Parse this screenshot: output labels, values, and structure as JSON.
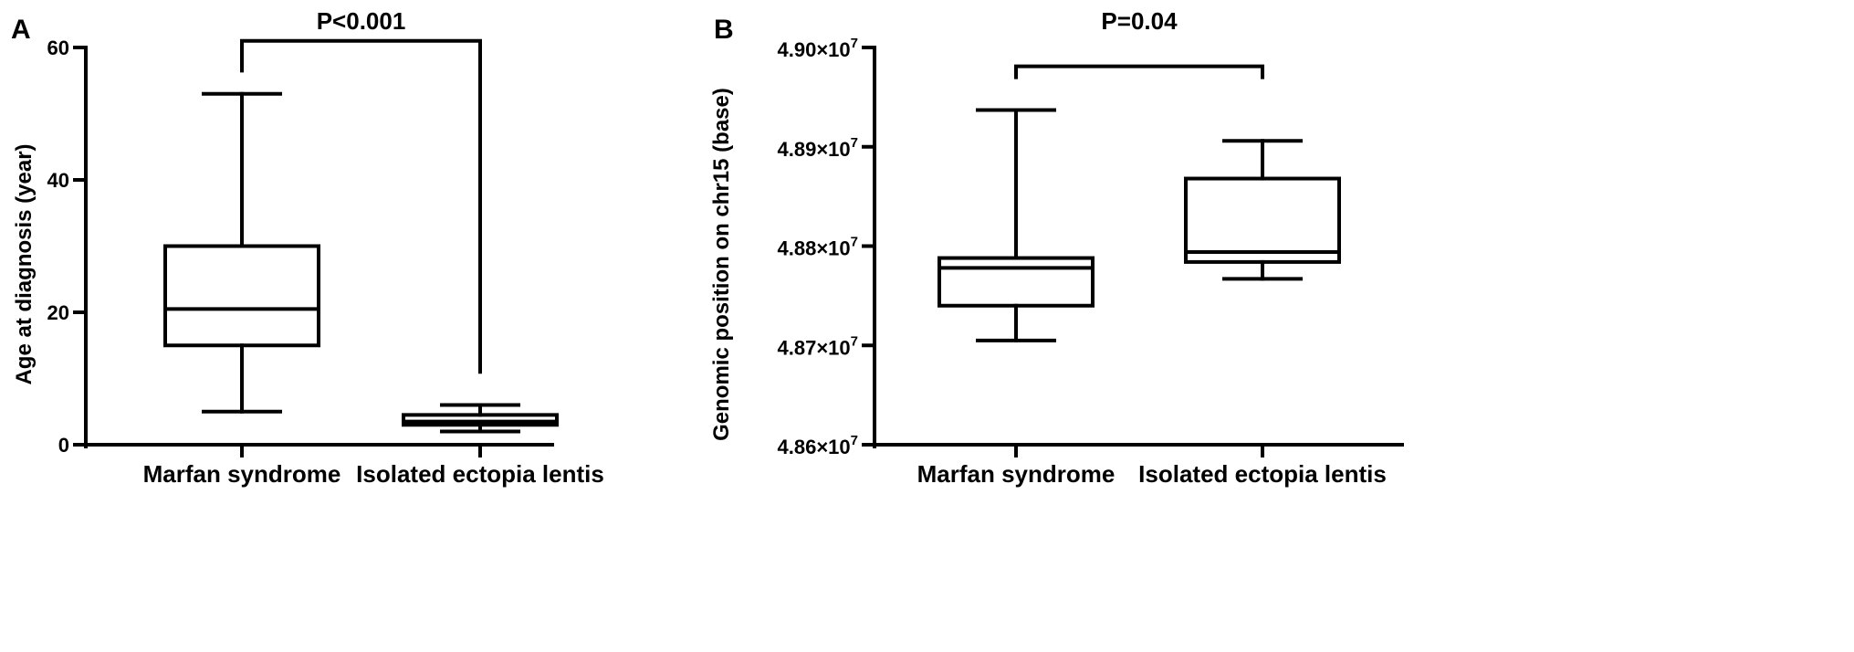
{
  "chart_data": [
    {
      "panel": "A",
      "type": "box",
      "categories": [
        "Marfan syndrome",
        "Isolated ectopia lentis"
      ],
      "ylabel": "Age at diagnosis (year)",
      "ylim": [
        0,
        60
      ],
      "yticks": [
        {
          "value": 0,
          "label": "0"
        },
        {
          "value": 20,
          "label": "20"
        },
        {
          "value": 40,
          "label": "40"
        },
        {
          "value": 60,
          "label": "60"
        }
      ],
      "boxes": [
        {
          "min": 5,
          "q1": 15,
          "median": 20.5,
          "q3": 30,
          "max": 53
        },
        {
          "min": 2,
          "q1": 3,
          "median": 3.5,
          "q3": 4.5,
          "max": 6
        }
      ],
      "significance": {
        "label": "P<0.001",
        "bar_y": 61,
        "left_end": 56.5,
        "right_end": 11
      }
    },
    {
      "panel": "B",
      "type": "box",
      "categories": [
        "Marfan syndrome",
        "Isolated ectopia lentis"
      ],
      "ylabel": "Genomic position on chr15 (base)",
      "ylim": [
        48600000,
        49000000
      ],
      "yticks": [
        {
          "value": 48600000,
          "label": "4.86×10",
          "exp": "7"
        },
        {
          "value": 48700000,
          "label": "4.87×10",
          "exp": "7"
        },
        {
          "value": 48800000,
          "label": "4.88×10",
          "exp": "7"
        },
        {
          "value": 48900000,
          "label": "4.89×10",
          "exp": "7"
        },
        {
          "value": 49000000,
          "label": "4.90×10",
          "exp": "7"
        }
      ],
      "boxes": [
        {
          "min": 48705000,
          "q1": 48740000,
          "median": 48778000,
          "q3": 48788000,
          "max": 48937000
        },
        {
          "min": 48767000,
          "q1": 48784000,
          "median": 48794000,
          "q3": 48868000,
          "max": 48906000
        }
      ],
      "significance": {
        "label": "P=0.04",
        "bar_y": 48981000,
        "left_end": 48970000,
        "right_end": 48970000
      }
    }
  ]
}
